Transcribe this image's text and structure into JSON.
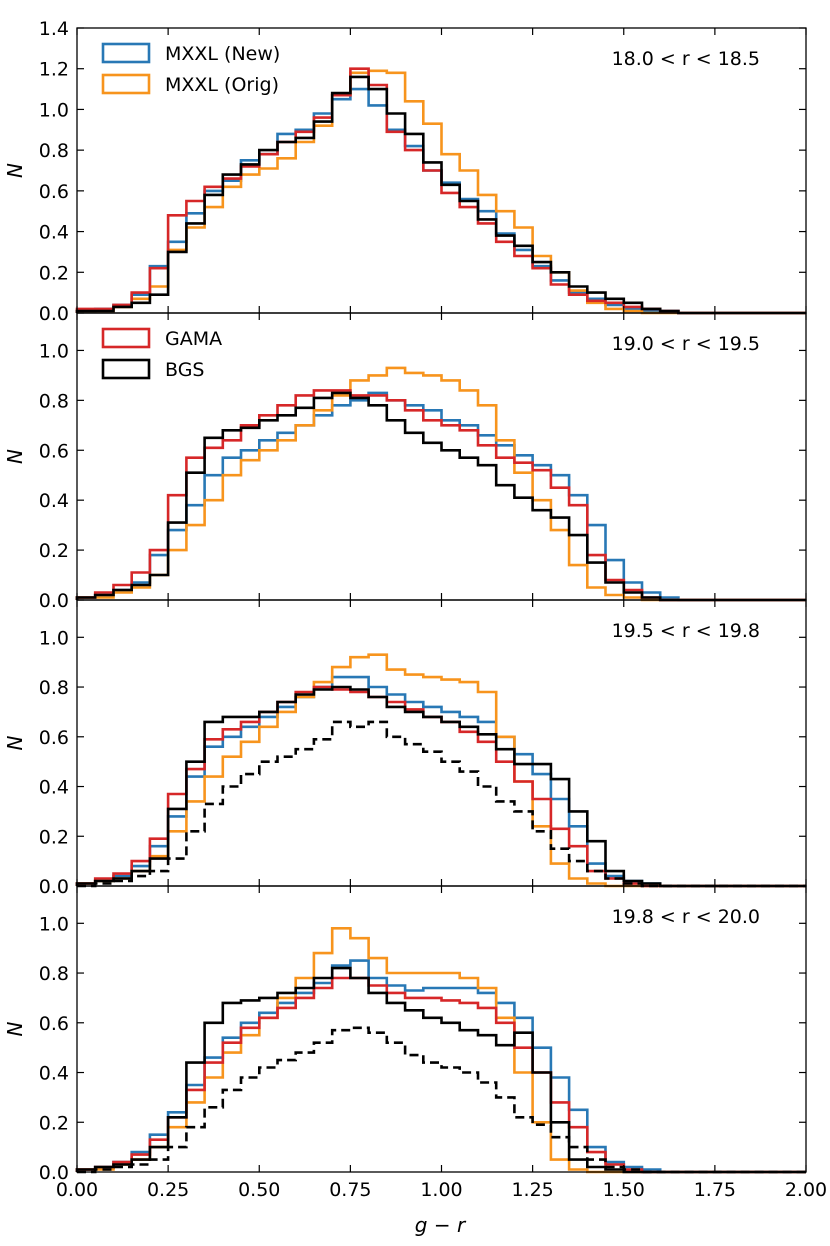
{
  "colors": {
    "mxxl_new": "#2878b5",
    "mxxl_orig": "#f7941d",
    "gama": "#d62728",
    "bgs": "#000000"
  },
  "chart_data": [
    {
      "type": "line",
      "title": "",
      "annotation": "18.0 < r < 18.5",
      "xlabel": "",
      "ylabel": "N",
      "xlim": [
        0.0,
        2.0
      ],
      "ylim": [
        0.0,
        1.4
      ],
      "yticks": [
        "0.0",
        "0.2",
        "0.4",
        "0.6",
        "0.8",
        "1.0",
        "1.2",
        "1.4"
      ],
      "yticks_values": [
        0.0,
        0.2,
        0.4,
        0.6,
        0.8,
        1.0,
        1.2,
        1.4
      ],
      "legend": [
        {
          "label": "MXXL (New)",
          "color": "#2878b5"
        },
        {
          "label": "MXXL (Orig)",
          "color": "#f7941d"
        }
      ],
      "legend_position": "top-left",
      "bin_width": 0.05,
      "series": [
        {
          "name": "MXXL (New)",
          "color": "#2878b5",
          "style": "solid",
          "values": [
            0.01,
            0.02,
            0.04,
            0.09,
            0.23,
            0.35,
            0.49,
            0.6,
            0.65,
            0.75,
            0.78,
            0.88,
            0.9,
            0.98,
            1.05,
            1.1,
            1.02,
            0.9,
            0.82,
            0.7,
            0.64,
            0.56,
            0.5,
            0.39,
            0.31,
            0.23,
            0.16,
            0.1,
            0.07,
            0.04,
            0.02,
            0.01,
            0.01,
            0.0,
            0.0,
            0.0,
            0.0,
            0.0,
            0.0,
            0.0
          ]
        },
        {
          "name": "MXXL (Orig)",
          "color": "#f7941d",
          "style": "solid",
          "values": [
            0.01,
            0.01,
            0.03,
            0.07,
            0.13,
            0.31,
            0.42,
            0.52,
            0.62,
            0.68,
            0.71,
            0.76,
            0.84,
            0.92,
            1.07,
            1.18,
            1.19,
            1.18,
            1.04,
            0.93,
            0.78,
            0.7,
            0.58,
            0.5,
            0.42,
            0.28,
            0.2,
            0.11,
            0.05,
            0.02,
            0.01,
            0.0,
            0.0,
            0.0,
            0.0,
            0.0,
            0.0,
            0.0,
            0.0,
            0.0
          ]
        },
        {
          "name": "GAMA",
          "color": "#d62728",
          "style": "solid",
          "values": [
            0.02,
            0.02,
            0.04,
            0.1,
            0.22,
            0.48,
            0.55,
            0.62,
            0.66,
            0.72,
            0.78,
            0.84,
            0.89,
            0.96,
            1.07,
            1.2,
            1.12,
            0.89,
            0.8,
            0.7,
            0.59,
            0.52,
            0.44,
            0.35,
            0.28,
            0.22,
            0.14,
            0.09,
            0.06,
            0.05,
            0.03,
            0.02,
            0.01,
            0.0,
            0.0,
            0.0,
            0.0,
            0.0,
            0.0,
            0.0
          ]
        },
        {
          "name": "BGS",
          "color": "#000000",
          "style": "solid",
          "values": [
            0.01,
            0.01,
            0.03,
            0.05,
            0.09,
            0.3,
            0.44,
            0.58,
            0.68,
            0.73,
            0.8,
            0.84,
            0.86,
            0.94,
            1.08,
            1.16,
            1.1,
            0.98,
            0.88,
            0.74,
            0.63,
            0.55,
            0.46,
            0.38,
            0.33,
            0.25,
            0.2,
            0.13,
            0.1,
            0.07,
            0.05,
            0.02,
            0.01,
            0.0,
            0.0,
            0.0,
            0.0,
            0.0,
            0.0,
            0.0
          ]
        }
      ]
    },
    {
      "type": "line",
      "title": "",
      "annotation": "19.0 < r < 19.5",
      "xlabel": "",
      "ylabel": "N",
      "xlim": [
        0.0,
        2.0
      ],
      "ylim": [
        0.0,
        1.15
      ],
      "yticks": [
        "0.0",
        "0.2",
        "0.4",
        "0.6",
        "0.8",
        "1.0"
      ],
      "yticks_values": [
        0.0,
        0.2,
        0.4,
        0.6,
        0.8,
        1.0
      ],
      "legend": [
        {
          "label": "GAMA",
          "color": "#d62728"
        },
        {
          "label": "BGS",
          "color": "#000000"
        }
      ],
      "legend_position": "top-left",
      "bin_width": 0.05,
      "series": [
        {
          "name": "MXXL (New)",
          "color": "#2878b5",
          "style": "solid",
          "values": [
            0.01,
            0.02,
            0.04,
            0.07,
            0.18,
            0.28,
            0.38,
            0.5,
            0.57,
            0.6,
            0.64,
            0.67,
            0.7,
            0.74,
            0.78,
            0.8,
            0.83,
            0.8,
            0.78,
            0.76,
            0.72,
            0.7,
            0.66,
            0.62,
            0.58,
            0.54,
            0.5,
            0.42,
            0.3,
            0.16,
            0.07,
            0.03,
            0.01,
            0.0,
            0.0,
            0.0,
            0.0,
            0.0,
            0.0,
            0.0
          ]
        },
        {
          "name": "MXXL (Orig)",
          "color": "#f7941d",
          "style": "solid",
          "values": [
            0.01,
            0.01,
            0.03,
            0.05,
            0.1,
            0.2,
            0.3,
            0.4,
            0.5,
            0.56,
            0.6,
            0.64,
            0.7,
            0.76,
            0.82,
            0.88,
            0.9,
            0.93,
            0.91,
            0.9,
            0.88,
            0.84,
            0.78,
            0.64,
            0.51,
            0.4,
            0.28,
            0.14,
            0.05,
            0.02,
            0.01,
            0.0,
            0.0,
            0.0,
            0.0,
            0.0,
            0.0,
            0.0,
            0.0,
            0.0
          ]
        },
        {
          "name": "GAMA",
          "color": "#d62728",
          "style": "solid",
          "values": [
            0.01,
            0.03,
            0.06,
            0.11,
            0.2,
            0.42,
            0.57,
            0.61,
            0.64,
            0.7,
            0.74,
            0.78,
            0.82,
            0.84,
            0.84,
            0.82,
            0.82,
            0.8,
            0.76,
            0.72,
            0.7,
            0.68,
            0.62,
            0.57,
            0.55,
            0.52,
            0.45,
            0.38,
            0.18,
            0.08,
            0.04,
            0.01,
            0.0,
            0.0,
            0.0,
            0.0,
            0.0,
            0.0,
            0.0,
            0.0
          ]
        },
        {
          "name": "BGS",
          "color": "#000000",
          "style": "solid",
          "values": [
            0.01,
            0.02,
            0.04,
            0.06,
            0.1,
            0.31,
            0.51,
            0.65,
            0.68,
            0.69,
            0.72,
            0.74,
            0.77,
            0.81,
            0.83,
            0.81,
            0.78,
            0.72,
            0.67,
            0.63,
            0.6,
            0.57,
            0.54,
            0.46,
            0.41,
            0.36,
            0.33,
            0.26,
            0.15,
            0.07,
            0.03,
            0.01,
            0.0,
            0.0,
            0.0,
            0.0,
            0.0,
            0.0,
            0.0,
            0.0
          ]
        }
      ]
    },
    {
      "type": "line",
      "title": "",
      "annotation": "19.5 < r < 19.8",
      "xlabel": "",
      "ylabel": "N",
      "xlim": [
        0.0,
        2.0
      ],
      "ylim": [
        0.0,
        1.15
      ],
      "yticks": [
        "0.0",
        "0.2",
        "0.4",
        "0.6",
        "0.8",
        "1.0"
      ],
      "yticks_values": [
        0.0,
        0.2,
        0.4,
        0.6,
        0.8,
        1.0
      ],
      "legend": [],
      "bin_width": 0.05,
      "series": [
        {
          "name": "MXXL (New)",
          "color": "#2878b5",
          "style": "solid",
          "values": [
            0.01,
            0.02,
            0.04,
            0.08,
            0.16,
            0.28,
            0.44,
            0.56,
            0.6,
            0.64,
            0.68,
            0.72,
            0.76,
            0.8,
            0.84,
            0.84,
            0.8,
            0.77,
            0.74,
            0.72,
            0.7,
            0.68,
            0.66,
            0.6,
            0.53,
            0.45,
            0.35,
            0.24,
            0.09,
            0.04,
            0.02,
            0.01,
            0.0,
            0.0,
            0.0,
            0.0,
            0.0,
            0.0,
            0.0,
            0.0
          ]
        },
        {
          "name": "MXXL (Orig)",
          "color": "#f7941d",
          "style": "solid",
          "values": [
            0.01,
            0.02,
            0.03,
            0.06,
            0.12,
            0.22,
            0.34,
            0.44,
            0.52,
            0.58,
            0.64,
            0.7,
            0.76,
            0.82,
            0.88,
            0.92,
            0.93,
            0.87,
            0.85,
            0.84,
            0.83,
            0.82,
            0.78,
            0.6,
            0.42,
            0.24,
            0.09,
            0.03,
            0.01,
            0.0,
            0.0,
            0.0,
            0.0,
            0.0,
            0.0,
            0.0,
            0.0,
            0.0,
            0.0,
            0.0
          ]
        },
        {
          "name": "GAMA",
          "color": "#d62728",
          "style": "solid",
          "values": [
            0.01,
            0.03,
            0.05,
            0.1,
            0.19,
            0.37,
            0.47,
            0.59,
            0.63,
            0.66,
            0.7,
            0.74,
            0.78,
            0.8,
            0.79,
            0.78,
            0.76,
            0.74,
            0.71,
            0.68,
            0.66,
            0.62,
            0.58,
            0.5,
            0.42,
            0.35,
            0.23,
            0.16,
            0.06,
            0.03,
            0.01,
            0.0,
            0.0,
            0.0,
            0.0,
            0.0,
            0.0,
            0.0,
            0.0,
            0.0
          ]
        },
        {
          "name": "BGS",
          "color": "#000000",
          "style": "solid",
          "values": [
            0.01,
            0.02,
            0.03,
            0.06,
            0.11,
            0.31,
            0.5,
            0.66,
            0.68,
            0.68,
            0.7,
            0.74,
            0.77,
            0.79,
            0.8,
            0.79,
            0.76,
            0.72,
            0.7,
            0.68,
            0.66,
            0.64,
            0.61,
            0.55,
            0.49,
            0.49,
            0.43,
            0.3,
            0.18,
            0.06,
            0.02,
            0.01,
            0.0,
            0.0,
            0.0,
            0.0,
            0.0,
            0.0,
            0.0,
            0.0
          ]
        },
        {
          "name": "BGS (dashed)",
          "color": "#000000",
          "style": "dashed",
          "values": [
            0.0,
            0.01,
            0.02,
            0.04,
            0.06,
            0.11,
            0.22,
            0.33,
            0.4,
            0.45,
            0.5,
            0.52,
            0.55,
            0.59,
            0.66,
            0.64,
            0.66,
            0.6,
            0.57,
            0.54,
            0.5,
            0.46,
            0.4,
            0.34,
            0.3,
            0.22,
            0.15,
            0.1,
            0.06,
            0.03,
            0.01,
            0.0,
            0.0,
            0.0,
            0.0,
            0.0,
            0.0,
            0.0,
            0.0,
            0.0
          ]
        }
      ]
    },
    {
      "type": "line",
      "title": "",
      "annotation": "19.8 < r < 20.0",
      "xlabel": "g − r",
      "ylabel": "N",
      "xlim": [
        0.0,
        2.0
      ],
      "ylim": [
        0.0,
        1.15
      ],
      "xticks": [
        "0.00",
        "0.25",
        "0.50",
        "0.75",
        "1.00",
        "1.25",
        "1.50",
        "1.75",
        "2.00"
      ],
      "xticks_values": [
        0.0,
        0.25,
        0.5,
        0.75,
        1.0,
        1.25,
        1.5,
        1.75,
        2.0
      ],
      "yticks": [
        "0.0",
        "0.2",
        "0.4",
        "0.6",
        "0.8",
        "1.0"
      ],
      "yticks_values": [
        0.0,
        0.2,
        0.4,
        0.6,
        0.8,
        1.0
      ],
      "legend": [],
      "bin_width": 0.05,
      "series": [
        {
          "name": "MXXL (New)",
          "color": "#2878b5",
          "style": "solid",
          "values": [
            0.01,
            0.02,
            0.04,
            0.08,
            0.15,
            0.24,
            0.35,
            0.46,
            0.54,
            0.6,
            0.64,
            0.68,
            0.72,
            0.76,
            0.83,
            0.85,
            0.78,
            0.75,
            0.73,
            0.74,
            0.74,
            0.74,
            0.72,
            0.68,
            0.62,
            0.5,
            0.38,
            0.25,
            0.1,
            0.04,
            0.02,
            0.01,
            0.0,
            0.0,
            0.0,
            0.0,
            0.0,
            0.0,
            0.0,
            0.0
          ]
        },
        {
          "name": "MXXL (Orig)",
          "color": "#f7941d",
          "style": "solid",
          "values": [
            0.01,
            0.01,
            0.03,
            0.05,
            0.1,
            0.18,
            0.28,
            0.38,
            0.48,
            0.55,
            0.62,
            0.7,
            0.78,
            0.88,
            0.98,
            0.94,
            0.86,
            0.8,
            0.8,
            0.8,
            0.8,
            0.78,
            0.74,
            0.62,
            0.4,
            0.2,
            0.05,
            0.01,
            0.0,
            0.0,
            0.0,
            0.0,
            0.0,
            0.0,
            0.0,
            0.0,
            0.0,
            0.0,
            0.0,
            0.0
          ]
        },
        {
          "name": "GAMA",
          "color": "#d62728",
          "style": "solid",
          "values": [
            0.01,
            0.02,
            0.04,
            0.07,
            0.13,
            0.22,
            0.33,
            0.44,
            0.52,
            0.58,
            0.62,
            0.66,
            0.7,
            0.74,
            0.78,
            0.78,
            0.75,
            0.72,
            0.7,
            0.7,
            0.69,
            0.68,
            0.66,
            0.6,
            0.5,
            0.4,
            0.28,
            0.18,
            0.08,
            0.03,
            0.01,
            0.0,
            0.0,
            0.0,
            0.0,
            0.0,
            0.0,
            0.0,
            0.0,
            0.0
          ]
        },
        {
          "name": "BGS",
          "color": "#000000",
          "style": "solid",
          "values": [
            0.01,
            0.02,
            0.03,
            0.05,
            0.1,
            0.22,
            0.44,
            0.6,
            0.68,
            0.69,
            0.7,
            0.72,
            0.74,
            0.78,
            0.82,
            0.78,
            0.72,
            0.68,
            0.65,
            0.62,
            0.6,
            0.57,
            0.55,
            0.51,
            0.56,
            0.4,
            0.2,
            0.05,
            0.02,
            0.01,
            0.0,
            0.0,
            0.0,
            0.0,
            0.0,
            0.0,
            0.0,
            0.0,
            0.0,
            0.0
          ]
        },
        {
          "name": "BGS (dashed)",
          "color": "#000000",
          "style": "dashed",
          "values": [
            0.0,
            0.01,
            0.02,
            0.03,
            0.05,
            0.1,
            0.18,
            0.26,
            0.33,
            0.38,
            0.42,
            0.45,
            0.48,
            0.52,
            0.57,
            0.58,
            0.56,
            0.52,
            0.47,
            0.44,
            0.42,
            0.4,
            0.36,
            0.3,
            0.22,
            0.19,
            0.14,
            0.1,
            0.05,
            0.02,
            0.01,
            0.0,
            0.0,
            0.0,
            0.0,
            0.0,
            0.0,
            0.0,
            0.0,
            0.0
          ]
        }
      ]
    }
  ]
}
